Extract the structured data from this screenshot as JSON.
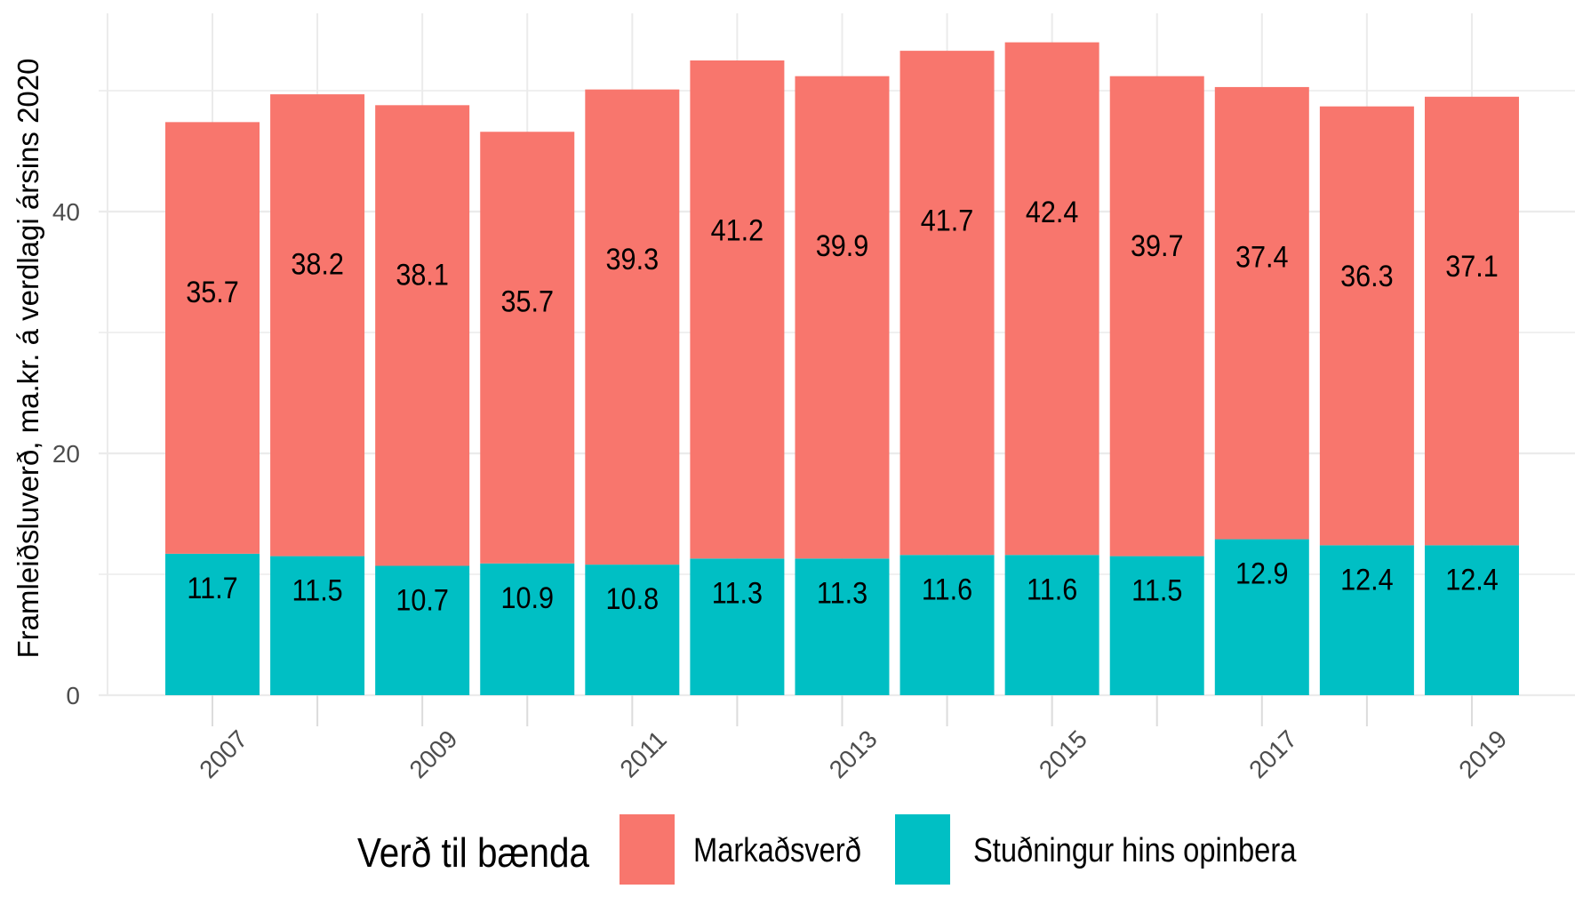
{
  "chart_data": {
    "type": "bar",
    "stacked": true,
    "title": "",
    "xlabel": "",
    "ylabel": "Framleiðsluverð, ma.kr. á verdlagi ársins 2020",
    "categories": [
      "2007",
      "2008",
      "2009",
      "2010",
      "2011",
      "2012",
      "2013",
      "2014",
      "2015",
      "2016",
      "2017",
      "2018",
      "2019"
    ],
    "x_tick_labels": [
      "2007",
      "2009",
      "2011",
      "2013",
      "2015",
      "2017",
      "2019"
    ],
    "y_ticks": [
      0,
      20,
      40
    ],
    "ylim": [
      0,
      56
    ],
    "grid": true,
    "legend_position": "bottom",
    "legend_title": "Verð til bænda",
    "series": [
      {
        "name": "Markaðsverð",
        "color": "#F8766D",
        "values": [
          35.7,
          38.2,
          38.1,
          35.7,
          39.3,
          41.2,
          39.9,
          41.7,
          42.4,
          39.7,
          37.4,
          36.3,
          37.1
        ]
      },
      {
        "name": "Stuðningur hins opinbera",
        "color": "#00BFC4",
        "values": [
          11.7,
          11.5,
          10.7,
          10.9,
          10.8,
          11.3,
          11.3,
          11.6,
          11.6,
          11.5,
          12.9,
          12.4,
          12.4
        ]
      }
    ]
  },
  "legend": {
    "title": "Verð til bænda",
    "items": [
      {
        "label": "Markaðsverð",
        "color": "#F8766D"
      },
      {
        "label": "Stuðningur hins opinbera",
        "color": "#00BFC4"
      }
    ]
  },
  "axis": {
    "y_title": "Framleiðsluverð, ma.kr. á verdlagi ársins 2020"
  }
}
